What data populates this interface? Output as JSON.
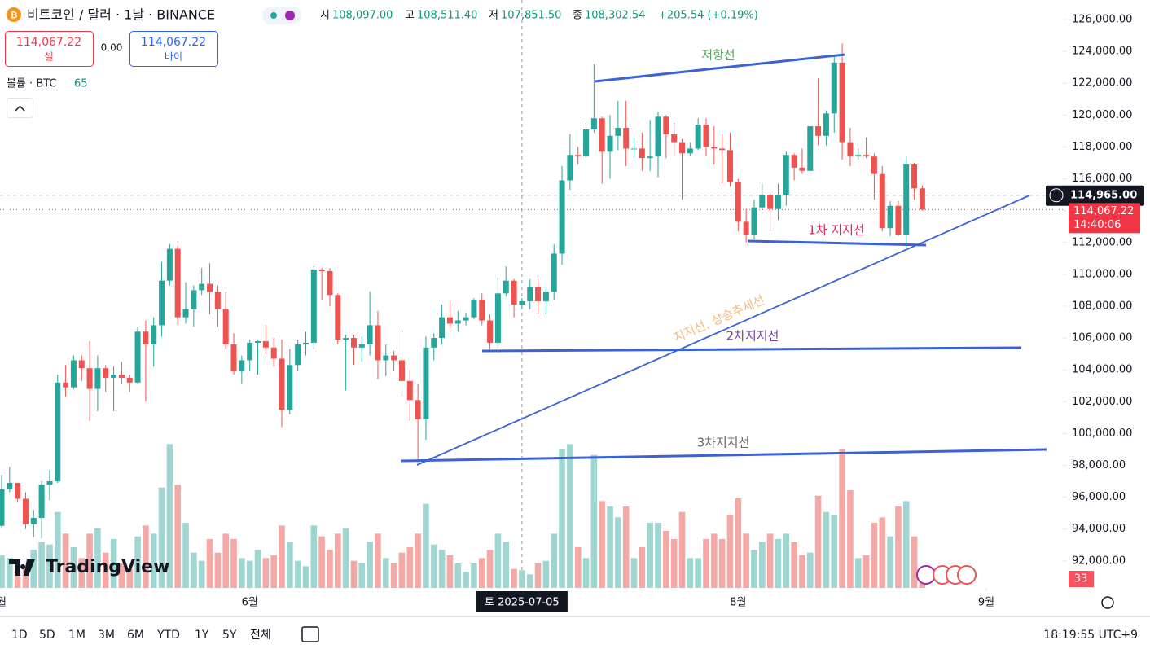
{
  "chart_data": {
    "type": "candlestick",
    "title": "비트코인 / 달러 · 1날 · BINANCE",
    "header": {
      "open_label": "시",
      "open": "108,097.00",
      "high_label": "고",
      "high": "108,511.40",
      "low_label": "저",
      "low": "107,851.50",
      "close_label": "종",
      "close": "108,302.54",
      "change": "+205.54 (+0.19%)"
    },
    "trade": {
      "sell_price": "114,067.22",
      "sell": "셀",
      "spread": "0.00",
      "buy_price": "114,067.22",
      "buy": "바이"
    },
    "volume_title": "볼륨 · BTC",
    "brand": "TradingView",
    "colors": {
      "up": "#26a69a",
      "down": "#ef5350",
      "up_volume": "#9fd6d1",
      "down_volume": "#f5a9a7"
    },
    "open": [
      94200,
      96500,
      96900,
      95900,
      94300,
      94700,
      96800,
      97000,
      103200,
      102900,
      104600,
      104100,
      102800,
      104100,
      103500,
      103700,
      103500,
      103200,
      106400,
      105600,
      106800,
      109600,
      111600,
      107300,
      107800,
      109000,
      109400,
      108900,
      107800,
      105600,
      103900,
      104600,
      105700,
      105800,
      105400,
      104700,
      101500,
      104300,
      105600,
      105700,
      110300,
      110200,
      108700,
      105900,
      106000,
      105400,
      105600,
      106800,
      104600,
      104900,
      104600,
      103300,
      102100,
      100900,
      105400,
      106000,
      107300,
      106900,
      107100,
      107300,
      108400,
      107100,
      105700,
      108800,
      109600,
      108097,
      108302.54,
      109200,
      108300,
      108900,
      111300,
      115900,
      117500,
      117400,
      119100,
      119800,
      117700,
      118700,
      119200,
      117900,
      117900,
      117300,
      117400,
      119900,
      118800,
      118300,
      117600,
      117900,
      119400,
      118000,
      117900,
      117800,
      115800,
      113300,
      112500,
      114200,
      115000,
      114100,
      115000,
      117500,
      116700,
      116500,
      119300,
      118700,
      120100,
      123300,
      118300,
      117400,
      117500,
      117400,
      116300,
      112900,
      114300,
      112500,
      116900,
      115400
    ],
    "high": [
      97400,
      97900,
      96900,
      96300,
      95200,
      97000,
      97700,
      103700,
      104300,
      104900,
      104900,
      105800,
      104900,
      104300,
      104200,
      104500,
      103700,
      106700,
      107100,
      107300,
      110800,
      111900,
      111800,
      109500,
      109300,
      110400,
      110700,
      109300,
      108900,
      106300,
      104900,
      105900,
      105900,
      106800,
      106000,
      105900,
      105300,
      105900,
      106400,
      110500,
      110400,
      110400,
      108800,
      106200,
      106200,
      106100,
      108900,
      107700,
      105600,
      105200,
      106500,
      104000,
      103100,
      106100,
      106300,
      108100,
      108300,
      107700,
      107600,
      108500,
      108800,
      107500,
      109800,
      110500,
      109700,
      108511.4,
      109700,
      109700,
      109200,
      111900,
      116800,
      118800,
      118000,
      119500,
      123200,
      119900,
      120000,
      120900,
      120900,
      118600,
      118900,
      119700,
      120200,
      120000,
      119500,
      118500,
      118300,
      119800,
      119800,
      119300,
      118800,
      118900,
      116000,
      114100,
      114700,
      115700,
      115100,
      115700,
      117700,
      117600,
      117900,
      119300,
      122300,
      120300,
      123700,
      124500,
      119200,
      117900,
      118600,
      117600,
      116800,
      114600,
      114600,
      117400,
      117000,
      115600
    ],
    "low": [
      94100,
      96300,
      95700,
      94000,
      93500,
      93400,
      95800,
      96900,
      102300,
      102800,
      103300,
      100800,
      101400,
      102600,
      101400,
      103100,
      102600,
      103100,
      102000,
      104200,
      106100,
      109300,
      106800,
      106900,
      106700,
      108700,
      107500,
      106700,
      105300,
      103700,
      103100,
      103900,
      103700,
      105000,
      104200,
      100400,
      101200,
      103900,
      104900,
      105300,
      108400,
      108000,
      105600,
      102700,
      104300,
      104500,
      104900,
      103400,
      103600,
      103900,
      102300,
      100800,
      98200,
      99600,
      104600,
      105600,
      106600,
      106400,
      106800,
      107200,
      106800,
      105300,
      105100,
      108600,
      107300,
      107851.5,
      107800,
      107500,
      107500,
      108400,
      110600,
      115300,
      116900,
      117300,
      118900,
      115700,
      116000,
      117800,
      116800,
      117300,
      116500,
      116500,
      116100,
      117300,
      117400,
      114700,
      117400,
      117800,
      117400,
      116900,
      115700,
      115500,
      112700,
      112000,
      112200,
      114100,
      112700,
      113400,
      114300,
      115900,
      116300,
      116500,
      118100,
      118100,
      118900,
      117200,
      116800,
      117200,
      117300,
      114700,
      112700,
      112400,
      112400,
      111700,
      114700,
      114000
    ],
    "close": [
      96500,
      96900,
      95900,
      94300,
      94700,
      96800,
      97000,
      103200,
      102900,
      104600,
      104100,
      102800,
      104100,
      103500,
      103700,
      103500,
      103200,
      106400,
      105600,
      106800,
      109600,
      111600,
      107300,
      107800,
      109000,
      109400,
      108900,
      107800,
      105600,
      103900,
      104600,
      105700,
      105800,
      105400,
      104700,
      101500,
      104300,
      105600,
      105700,
      110300,
      110200,
      108700,
      105900,
      106000,
      105400,
      105600,
      106800,
      104600,
      104900,
      104600,
      103300,
      102100,
      100900,
      105400,
      106000,
      107300,
      106900,
      107100,
      107300,
      108400,
      107100,
      105700,
      108800,
      109600,
      108097,
      108302.54,
      109200,
      108300,
      108900,
      111300,
      115900,
      117500,
      117400,
      119100,
      119800,
      117700,
      118700,
      119200,
      117900,
      117900,
      117300,
      117400,
      119900,
      118800,
      118300,
      117600,
      117900,
      119400,
      118000,
      117900,
      117800,
      115800,
      113300,
      112500,
      114200,
      115000,
      114100,
      115000,
      117500,
      116700,
      116500,
      119300,
      118700,
      120100,
      123300,
      118300,
      117400,
      117500,
      117400,
      116300,
      112900,
      114300,
      112500,
      116900,
      115400,
      114067.22
    ],
    "volume": [
      120,
      110,
      60,
      70,
      140,
      170,
      160,
      280,
      200,
      150,
      110,
      200,
      220,
      130,
      180,
      90,
      70,
      190,
      230,
      200,
      370,
      530,
      380,
      240,
      130,
      100,
      180,
      130,
      200,
      180,
      110,
      100,
      140,
      110,
      120,
      230,
      170,
      100,
      80,
      230,
      190,
      140,
      200,
      220,
      100,
      90,
      170,
      200,
      110,
      90,
      130,
      150,
      200,
      310,
      160,
      140,
      120,
      90,
      60,
      90,
      110,
      140,
      200,
      170,
      70,
      65,
      50,
      90,
      100,
      200,
      510,
      530,
      150,
      110,
      490,
      320,
      300,
      260,
      300,
      110,
      150,
      240,
      240,
      210,
      180,
      280,
      110,
      110,
      180,
      200,
      180,
      270,
      330,
      200,
      140,
      170,
      200,
      180,
      200,
      170,
      120,
      130,
      340,
      280,
      270,
      510,
      360,
      110,
      120,
      240,
      260,
      190,
      300,
      320,
      190,
      33
    ],
    "vlim": [
      0,
      660
    ],
    "ylim": [
      90300,
      127230
    ],
    "yticks": [
      {
        "value": 92000,
        "label": "92,000.00"
      },
      {
        "value": 94000,
        "label": "94,000.00"
      },
      {
        "value": 96000,
        "label": "96,000.00"
      },
      {
        "value": 98000,
        "label": "98,000.00"
      },
      {
        "value": 100000,
        "label": "100,000.00"
      },
      {
        "value": 102000,
        "label": "102,000.00"
      },
      {
        "value": 104000,
        "label": "104,000.00"
      },
      {
        "value": 106000,
        "label": "106,000.00"
      },
      {
        "value": 108000,
        "label": "108,000.00"
      },
      {
        "value": 110000,
        "label": "110,000.00"
      },
      {
        "value": 112000,
        "label": "112,000.00"
      },
      {
        "value": 114000,
        "label": "114,000.00"
      },
      {
        "value": 116000,
        "label": "116,000.00"
      },
      {
        "value": 118000,
        "label": "118,000.00"
      },
      {
        "value": 120000,
        "label": "120,000.00"
      },
      {
        "value": 122000,
        "label": "122,000.00"
      },
      {
        "value": 124000,
        "label": "124,000.00"
      },
      {
        "value": 126000,
        "label": "126,000.00"
      }
    ],
    "xlim": [
      -0.2,
      132.56
    ],
    "xticks": [
      {
        "value": 0,
        "label": "월"
      },
      {
        "value": 31,
        "label": "6월"
      },
      {
        "value": 92,
        "label": "8월"
      },
      {
        "value": 123,
        "label": "9월"
      }
    ],
    "crosshair": {
      "x": {
        "value": 65,
        "label": "토 2025-07-05"
      },
      "y": {
        "value": 114965,
        "label": "114,965.00"
      }
    },
    "last_price_label": "114,067.22",
    "countdown": "14:40:06",
    "grid": false,
    "annotations": [
      "저항선",
      "1차 지지선",
      "지지선, 상승추세선",
      "2차지지선",
      "3차지지선"
    ],
    "intervals": [
      "1D",
      "5D",
      "1M",
      "3M",
      "6M",
      "YTD",
      "1Y",
      "5Y",
      "전체"
    ],
    "clock": "18:19:55 UTC+9"
  }
}
